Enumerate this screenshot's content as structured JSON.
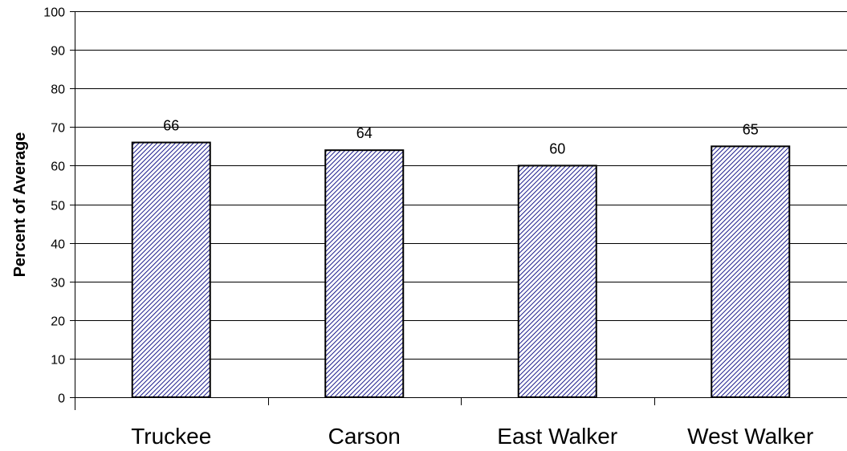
{
  "chart_data": {
    "type": "bar",
    "categories": [
      "Truckee",
      "Carson",
      "East Walker",
      "West Walker"
    ],
    "values": [
      66,
      64,
      60,
      65
    ],
    "data_labels": [
      "66",
      "64",
      "60",
      "65"
    ],
    "title": "",
    "xlabel": "",
    "ylabel": "Percent of Average",
    "ylim": [
      0,
      100
    ],
    "yticks": [
      0,
      10,
      20,
      30,
      40,
      50,
      60,
      70,
      80,
      90,
      100
    ],
    "grid": true,
    "bar_fill": "hatched",
    "bar_color": "#1a1a8c",
    "legend": "none"
  }
}
